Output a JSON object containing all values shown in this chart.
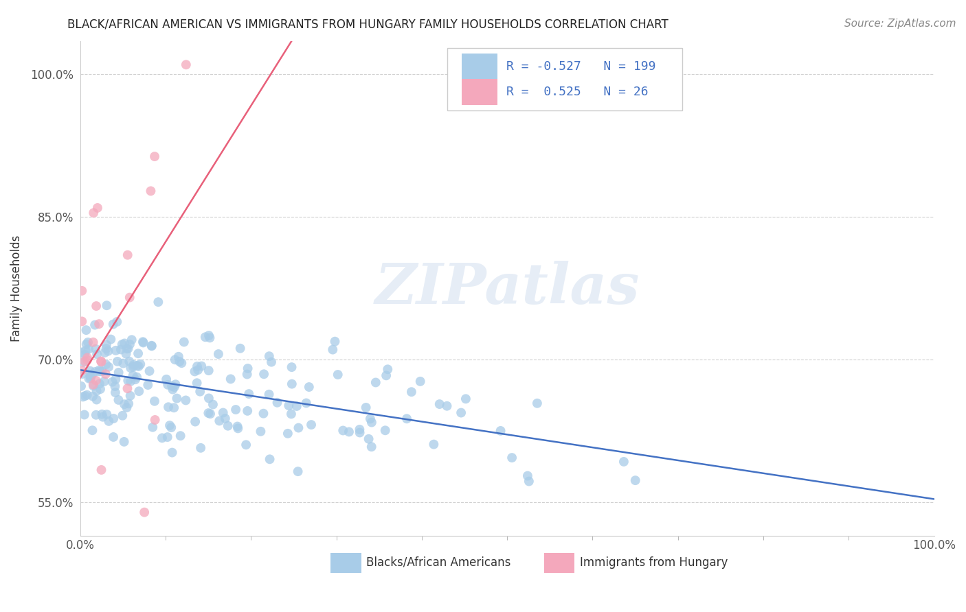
{
  "title": "BLACK/AFRICAN AMERICAN VS IMMIGRANTS FROM HUNGARY FAMILY HOUSEHOLDS CORRELATION CHART",
  "source": "Source: ZipAtlas.com",
  "ylabel": "Family Households",
  "xlim": [
    0.0,
    1.0
  ],
  "ylim": [
    0.515,
    1.035
  ],
  "yticks": [
    0.55,
    0.7,
    0.85,
    1.0
  ],
  "ytick_labels": [
    "55.0%",
    "70.0%",
    "85.0%",
    "100.0%"
  ],
  "xtick_labels": [
    "0.0%",
    "100.0%"
  ],
  "blue_R": -0.527,
  "blue_N": 199,
  "pink_R": 0.525,
  "pink_N": 26,
  "blue_color": "#a8cce8",
  "pink_color": "#f4a8bc",
  "blue_line_color": "#4472c4",
  "pink_line_color": "#e8607a",
  "legend_label_blue": "Blacks/African Americans",
  "legend_label_pink": "Immigrants from Hungary",
  "watermark": "ZIPatlas",
  "background_color": "#ffffff",
  "grid_color": "#cccccc",
  "seed": 42
}
